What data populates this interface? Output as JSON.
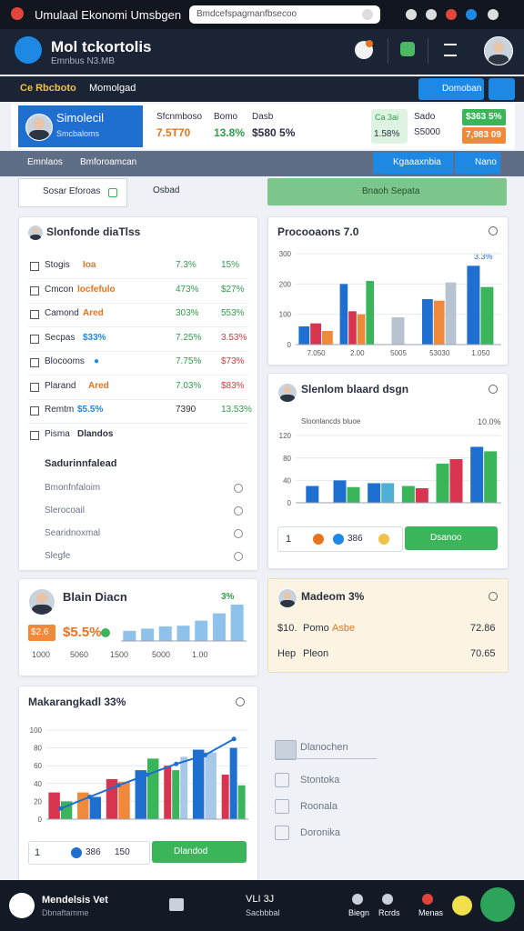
{
  "status": {
    "title": "Umulaal Ekonomi Umsbgen",
    "search": "Bmdcefspagmanfbsecoo"
  },
  "header": {
    "brand": "Mol tckortolis",
    "subtitle": "Emnbus N3.MB"
  },
  "nav": {
    "tabs": [
      "Ce Rbcboto",
      "Momolgad"
    ],
    "button": "Domoban"
  },
  "summary": {
    "name": "Simolecil",
    "role": "Smcbaloms",
    "stats": [
      {
        "label": "Sfcnmboso",
        "value": "7.5T70",
        "color": "#e8731e"
      },
      {
        "label": "Bomo",
        "value": "13.8%",
        "color": "#2e9e4a"
      },
      {
        "label": "Dasb",
        "value": "$580 5%",
        "color": "#2a3140"
      }
    ],
    "badge": {
      "top": "Ca 3ai",
      "value": "1.58%"
    },
    "extra": {
      "label": "Sado",
      "value": "S5000"
    },
    "chips": [
      "$363 5%",
      "7,983 09"
    ]
  },
  "toolbar": {
    "left": [
      "Emnlaos",
      "Bmforoamcan"
    ],
    "buttons": [
      "Kgaaaxnbia",
      "Nano"
    ]
  },
  "filter": {
    "search": "Sosar Eforoas",
    "chip": "Osbad",
    "action": "Bnaoh Sepata"
  },
  "list_card": {
    "title": "Slonfonde diaTlss",
    "rows": [
      {
        "name": "Stogis",
        "tag": "Ioa",
        "tag_color": "#e8731e",
        "v1": "7.3%",
        "v2": "15%",
        "v1_color": "#2e9e4a",
        "v2_color": "#2e9e4a"
      },
      {
        "name": "Cmcon",
        "tag": "locfefulo",
        "tag_color": "#e8731e",
        "v1": "473%",
        "v2": "$27%",
        "v1_color": "#2e9e4a",
        "v2_color": "#2e9e4a"
      },
      {
        "name": "Camond",
        "tag": "Ared",
        "tag_color": "#e8731e",
        "v1": "303%",
        "v2": "553%",
        "v1_color": "#2e9e4a",
        "v2_color": "#2e9e4a"
      },
      {
        "name": "Secpas",
        "tag": "$33%",
        "tag_color": "#1e88e5",
        "v1": "7.25%",
        "v2": "3.53%",
        "v1_color": "#2e9e4a",
        "v2_color": "#d93a3a"
      },
      {
        "name": "Blocooms",
        "tag": "●",
        "tag_color": "#1e88e5",
        "v1": "7.75%",
        "v2": "$73%",
        "v1_color": "#2e9e4a",
        "v2_color": "#d93a3a"
      },
      {
        "name": "Plarand",
        "tag": "Ared",
        "tag_color": "#e8731e",
        "v1": "7.03%",
        "v2": "$83%",
        "v1_color": "#2e9e4a",
        "v2_color": "#d93a3a"
      },
      {
        "name": "Remtm",
        "tag": "$5.5%",
        "tag_color": "#1e88e5",
        "v1": "7390",
        "v2": "13.53%",
        "v1_color": "#2a3140",
        "v2_color": "#2e9e4a"
      },
      {
        "name": "Pisma",
        "tag": "Dlandos",
        "tag_color": "#2a3140",
        "v1": "",
        "v2": "",
        "v1_color": "#2a3140",
        "v2_color": "#2a3140"
      }
    ],
    "section": "Sadurinnfalead",
    "links": [
      "Bmonfnfaloim",
      "Slerocoail",
      "Searidnoxmal",
      "Slegfe"
    ]
  },
  "blain_card": {
    "values": [
      "$2.6",
      "$5.5%"
    ],
    "labels": [
      "1000",
      "5060",
      "1500",
      "5000",
      "1.00"
    ]
  },
  "madeom_card": {
    "title": "Madeom 3%",
    "rows": [
      {
        "a": "$10.",
        "b": "Pomo",
        "c": "Asbe",
        "d": "72.86"
      },
      {
        "a": "Hep",
        "b": "Pleon",
        "c": "",
        "d": "70.65"
      }
    ]
  },
  "chart2_footer": {
    "count": "1",
    "chip": "386",
    "button": "Dsanoo"
  },
  "chart4_footer": {
    "count": "1",
    "a": "386",
    "b": "150",
    "button": "Dlandod"
  },
  "side_list": [
    "Dlanochen",
    "Stontoka",
    "Roonala",
    "Doronika"
  ],
  "bottom": {
    "name": "Mendelsis Vet",
    "sub": "Dbnaftamme",
    "center": "VLI 3J",
    "center_sub": "Sacbbbal",
    "items": [
      "Biegn",
      "Rcrds",
      "Menas"
    ]
  },
  "chart_data": [
    {
      "type": "bar",
      "title": "Procooaons 7.0",
      "annotation": "3.3%",
      "categories": [
        "7.050",
        "2.00",
        "5005",
        "53030",
        "1.050"
      ],
      "ylim": [
        0,
        300
      ],
      "yticks": [
        0,
        100,
        200,
        300
      ],
      "series": [
        {
          "name": "A",
          "color": "#1e6fd0",
          "values": [
            60,
            200,
            null,
            150,
            260
          ]
        },
        {
          "name": "B",
          "color": "#d9344f",
          "values": [
            70,
            110,
            null,
            null,
            null
          ]
        },
        {
          "name": "C",
          "color": "#f08a3a",
          "values": [
            45,
            100,
            null,
            145,
            null
          ]
        },
        {
          "name": "D",
          "color": "#3bb55a",
          "values": [
            null,
            210,
            null,
            null,
            190
          ]
        },
        {
          "name": "E",
          "color": "#b8c3d2",
          "values": [
            null,
            null,
            90,
            205,
            null
          ]
        }
      ]
    },
    {
      "type": "bar",
      "title": "Slenlom blaard dsgn",
      "subtitle": "Sloonlancds bluoe",
      "annotation": "10.0%",
      "categories": [
        null,
        null,
        null,
        null,
        null,
        null
      ],
      "ylim": [
        0,
        130
      ],
      "yticks": [
        0,
        40,
        80,
        120
      ],
      "series": [
        {
          "name": "A",
          "color": "#1e6fd0",
          "values": [
            30,
            40,
            35,
            null,
            null,
            100
          ]
        },
        {
          "name": "B",
          "color": "#3bb55a",
          "values": [
            null,
            28,
            null,
            30,
            70,
            92
          ]
        },
        {
          "name": "C",
          "color": "#d9344f",
          "values": [
            null,
            null,
            null,
            26,
            78,
            null
          ]
        },
        {
          "name": "D",
          "color": "#4fb0d6",
          "values": [
            null,
            null,
            35,
            null,
            null,
            null
          ]
        }
      ]
    },
    {
      "type": "bar",
      "title": "Blain Diacn",
      "annotation": "3%",
      "categories": [
        null,
        null,
        null,
        null,
        null,
        null,
        null
      ],
      "ylim": [
        0,
        50
      ],
      "series": [
        {
          "name": "A",
          "color": "#8fc2ea",
          "values": [
            14,
            17,
            20,
            21,
            28,
            38,
            50
          ]
        }
      ]
    },
    {
      "type": "bar",
      "title": "Makarangkadl 33%",
      "categories": [
        null,
        null,
        null,
        null,
        null,
        null,
        null
      ],
      "ylim": [
        0,
        100
      ],
      "yticks": [
        0,
        20,
        40,
        60,
        80,
        100
      ],
      "series": [
        {
          "name": "A",
          "color": "#d9344f",
          "values": [
            30,
            null,
            45,
            null,
            60,
            null,
            50
          ]
        },
        {
          "name": "B",
          "color": "#f08a3a",
          "values": [
            null,
            30,
            42,
            null,
            null,
            null,
            null
          ]
        },
        {
          "name": "C",
          "color": "#1e6fd0",
          "values": [
            null,
            25,
            null,
            55,
            null,
            78,
            80
          ]
        },
        {
          "name": "D",
          "color": "#3bb55a",
          "values": [
            20,
            null,
            null,
            68,
            55,
            null,
            38
          ]
        },
        {
          "name": "E",
          "color": "#a8c8ea",
          "values": [
            null,
            null,
            null,
            null,
            70,
            75,
            null
          ]
        },
        {
          "name": "F",
          "color": "#1e6fd0",
          "type": "line",
          "values": [
            12,
            25,
            38,
            50,
            62,
            72,
            90
          ]
        }
      ]
    }
  ]
}
